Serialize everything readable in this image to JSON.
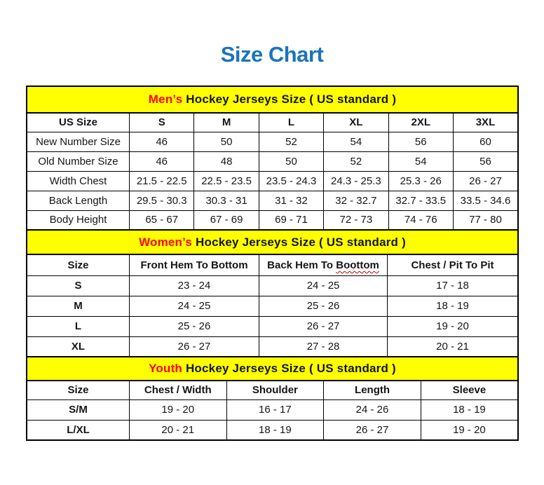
{
  "page": {
    "title": "Size Chart"
  },
  "colors": {
    "title_blue": "#1B74BC",
    "banner_yellow": "#FFFF00",
    "accent_red": "#FF0000",
    "squiggle_red": "#C00000",
    "border_black": "#000000"
  },
  "sections": [
    {
      "id": "mens",
      "heading_accent": "Men’s",
      "heading_rest": " Hockey Jerseys Size ( US standard )",
      "col_widths": [
        "20.9%",
        "13.18%",
        "13.18%",
        "13.18%",
        "13.18%",
        "13.18%",
        "13.2%"
      ],
      "columns": [
        {
          "text": "US Size"
        },
        {
          "text": "S"
        },
        {
          "text": "M"
        },
        {
          "text": "L"
        },
        {
          "text": "XL"
        },
        {
          "text": "2XL"
        },
        {
          "text": "3XL"
        }
      ],
      "rows": [
        {
          "label": "New Number Size",
          "values": [
            "46",
            "50",
            "52",
            "54",
            "56",
            "60"
          ]
        },
        {
          "label": "Old Number Size",
          "values": [
            "46",
            "48",
            "50",
            "52",
            "54",
            "56"
          ]
        },
        {
          "label": "Width Chest",
          "values": [
            "21.5 - 22.5",
            "22.5 - 23.5",
            "23.5 - 24.3",
            "24.3 - 25.3",
            "25.3 - 26",
            "26 - 27"
          ]
        },
        {
          "label": "Back Length",
          "values": [
            "29.5 - 30.3",
            "30.3 - 31",
            "31 - 32",
            "32 - 32.7",
            "32.7 - 33.5",
            "33.5 - 34.6"
          ]
        },
        {
          "label": "Body Height",
          "values": [
            "65 - 67",
            "67 - 69",
            "69 - 71",
            "72 - 73",
            "74 - 76",
            "77 - 80"
          ]
        }
      ]
    },
    {
      "id": "womens",
      "heading_accent": "Women’s",
      "heading_rest": " Hockey Jerseys Size ( US standard )",
      "col_widths": [
        "20.9%",
        "26.4%",
        "26.1%",
        "26.6%"
      ],
      "columns": [
        {
          "text": "Size"
        },
        {
          "text": "Front Hem To Bottom"
        },
        {
          "text": "Back Hem To ",
          "squiggle": "Boottom"
        },
        {
          "text": "Chest / Pit To Pit"
        }
      ],
      "rows": [
        {
          "label": "S",
          "values": [
            "23 - 24",
            "24 - 25",
            "17 - 18"
          ]
        },
        {
          "label": "M",
          "values": [
            "24 - 25",
            "25 - 26",
            "18 - 19"
          ]
        },
        {
          "label": "L",
          "values": [
            "25 - 26",
            "26 - 27",
            "19 - 20"
          ]
        },
        {
          "label": "XL",
          "values": [
            "26 - 27",
            "27 - 28",
            "20 - 21"
          ]
        }
      ]
    },
    {
      "id": "youth",
      "heading_accent": "Youth",
      "heading_rest": " Hockey Jerseys Size ( US standard )",
      "col_widths": [
        "20.9%",
        "19.78%",
        "19.78%",
        "19.78%",
        "19.78%"
      ],
      "columns": [
        {
          "text": "Size"
        },
        {
          "text": "Chest / Width"
        },
        {
          "text": "Shoulder"
        },
        {
          "text": "Length"
        },
        {
          "text": "Sleeve"
        }
      ],
      "rows": [
        {
          "label": "S/M",
          "values": [
            "19 - 20",
            "16 - 17",
            "24 - 26",
            "18 - 19"
          ]
        },
        {
          "label": "L/XL",
          "values": [
            "20 - 21",
            "18 - 19",
            "26 - 27",
            "19 - 20"
          ]
        }
      ]
    }
  ]
}
